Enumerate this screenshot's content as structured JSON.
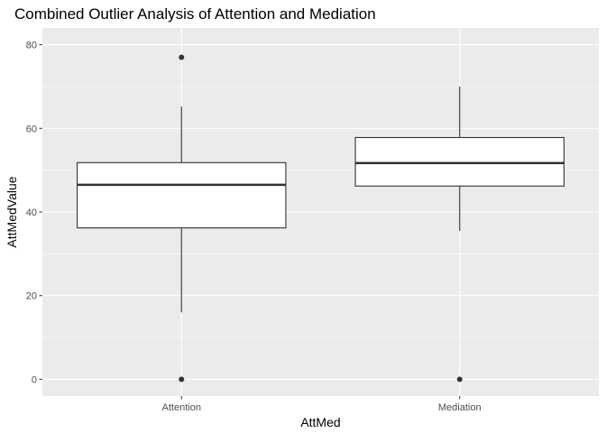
{
  "chart_data": {
    "type": "boxplot",
    "title": "Combined Outlier Analysis of Attention and Mediation",
    "xlabel": "AttMed",
    "ylabel": "AttMedValue",
    "ylim": [
      -4,
      84
    ],
    "yticks": [
      0,
      20,
      40,
      60,
      80
    ],
    "grid": true,
    "categories": [
      "Attention",
      "Mediation"
    ],
    "boxes": [
      {
        "category": "Attention",
        "whisker_low": 16,
        "q1": 36.2,
        "median": 46.5,
        "q3": 51.8,
        "whisker_high": 65.2,
        "outliers": [
          0,
          77
        ]
      },
      {
        "category": "Mediation",
        "whisker_low": 35.5,
        "q1": 46.2,
        "median": 51.7,
        "q3": 57.8,
        "whisker_high": 70,
        "outliers": [
          0
        ]
      }
    ]
  },
  "colors": {
    "panel_background": "#ebebeb",
    "gridline": "#ffffff",
    "box_fill": "#ffffff",
    "box_stroke": "#333333",
    "outlier_point": "#333333",
    "tick_label": "#4d4d4d"
  }
}
